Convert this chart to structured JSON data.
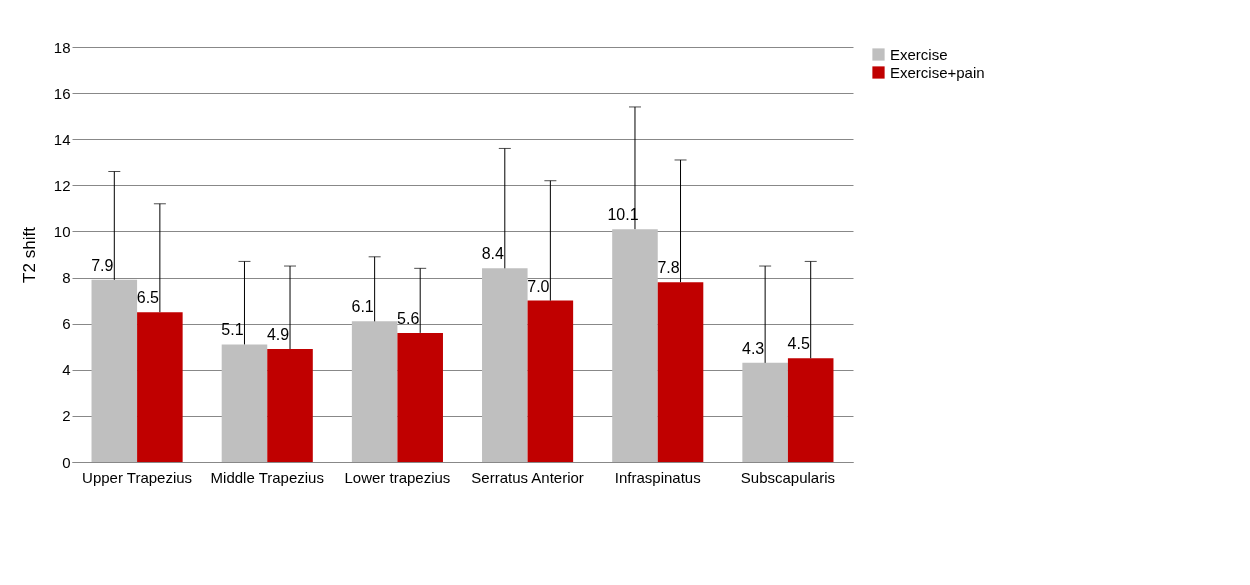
{
  "chart_data": {
    "type": "bar",
    "ylabel": "T2 shift",
    "categories": [
      "Upper Trapezius",
      "Middle Trapezius",
      "Lower trapezius",
      "Serratus Anterior",
      "Infraspinatus",
      "Subscapularis"
    ],
    "series": [
      {
        "name": "Exercise",
        "color": "#bfbfbf",
        "values": [
          7.9,
          5.1,
          6.1,
          8.4,
          10.1,
          4.3
        ],
        "value_labels": [
          "7.9",
          "5.1",
          "6.1",
          "8.4",
          "10.1",
          "4.3"
        ],
        "errors": [
          [
            7.9,
            12.6
          ],
          [
            5.1,
            8.7
          ],
          [
            6.1,
            8.9
          ],
          [
            8.4,
            13.6
          ],
          [
            10.1,
            15.4
          ],
          [
            4.3,
            8.5
          ]
        ]
      },
      {
        "name": "Exercise+pain",
        "color": "#c00000",
        "values": [
          6.5,
          4.9,
          5.6,
          7.0,
          7.8,
          4.5
        ],
        "value_labels": [
          "6.5",
          "4.9",
          "5.6",
          "7.0",
          "7.8",
          "4.5"
        ],
        "errors": [
          [
            6.5,
            11.2
          ],
          [
            4.9,
            8.5
          ],
          [
            5.6,
            8.4
          ],
          [
            7.0,
            12.2
          ],
          [
            7.8,
            13.1
          ],
          [
            4.5,
            8.7
          ]
        ]
      }
    ],
    "ylim": [
      0,
      18
    ],
    "yticks": [
      0,
      2,
      4,
      6,
      8,
      10,
      12,
      14,
      16,
      18
    ],
    "grid": "y",
    "legend": "right"
  }
}
